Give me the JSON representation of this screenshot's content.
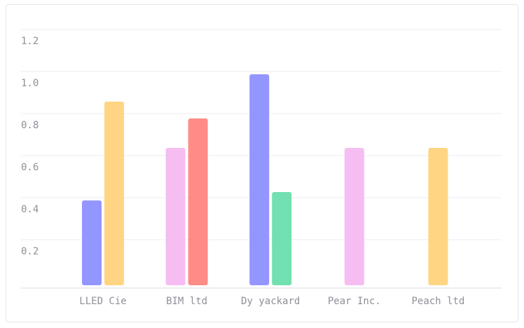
{
  "chart_data": {
    "type": "bar",
    "categories": [
      "LLED Cie",
      "BIM ltd",
      "Dy yackard",
      "Pear Inc.",
      "Peach ltd"
    ],
    "yticks": [
      0.2,
      0.4,
      0.6,
      0.8,
      1.0,
      1.2
    ],
    "yticks_labels": [
      "0.2",
      "0.4",
      "0.6",
      "0.8",
      "1.0",
      "1.2"
    ],
    "ylim": [
      0,
      1.32
    ],
    "grid": true,
    "legend": "none",
    "bars": [
      {
        "category": "LLED Cie",
        "value": 0.43,
        "color": "#9396ff"
      },
      {
        "category": "LLED Cie",
        "value": 0.9,
        "color": "#ffd583"
      },
      {
        "category": "BIM ltd",
        "value": 0.68,
        "color": "#f5bdf2"
      },
      {
        "category": "BIM ltd",
        "value": 0.82,
        "color": "#ff8c87"
      },
      {
        "category": "Dy yackard",
        "value": 1.03,
        "color": "#9396ff"
      },
      {
        "category": "Dy yackard",
        "value": 0.47,
        "color": "#72e0b0"
      },
      {
        "category": "Pear Inc.",
        "value": 0.68,
        "color": "#f5bdf2"
      },
      {
        "category": "Peach ltd",
        "value": 0.68,
        "color": "#ffd583"
      }
    ]
  }
}
